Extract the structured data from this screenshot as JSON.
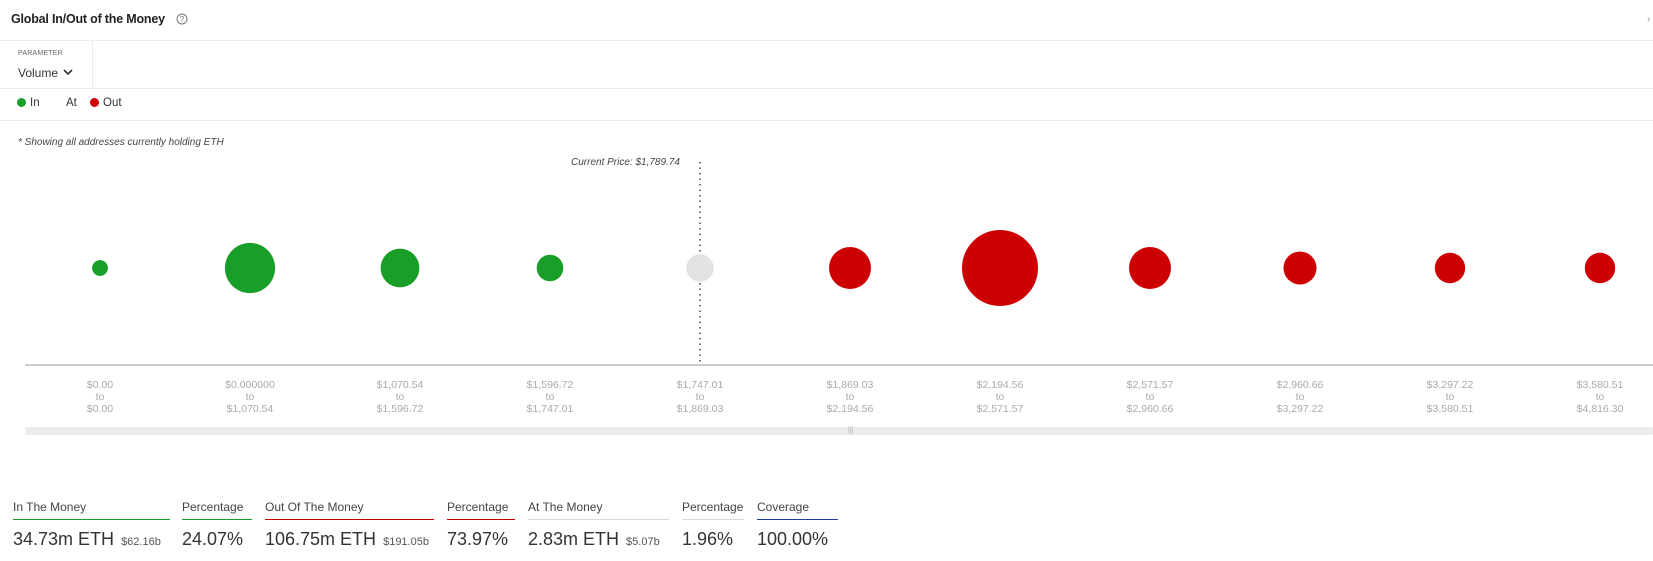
{
  "header": {
    "title": "Global In/Out of the Money"
  },
  "parameter": {
    "label": "PARAMETER",
    "value": "Volume"
  },
  "legend": [
    {
      "label": "In",
      "color": "#1a9e2a"
    },
    {
      "label": "At",
      "color": ""
    },
    {
      "label": "Out",
      "color": "#cc0000"
    }
  ],
  "note": "* Showing all addresses currently holding ETH",
  "current_price_label": "Current Price: $1,789.74",
  "colors": {
    "in": "#1a9e2a",
    "at": "#e3e3e3",
    "out": "#cc0000",
    "coverage": "#1f3f9f"
  },
  "chart_data": {
    "type": "scatter",
    "title": "",
    "xlabel": "",
    "ylabel": "",
    "categories": [
      {
        "from": "$0.00",
        "to_word": "to",
        "to": "$0.00",
        "status": "in",
        "volume_m_eth": 0.6
      },
      {
        "from": "$0.000000",
        "to_word": "to",
        "to": "$1,070.54",
        "status": "in",
        "volume_m_eth": 6.0
      },
      {
        "from": "$1,070.54",
        "to_word": "to",
        "to": "$1,596.72",
        "status": "in",
        "volume_m_eth": 3.6
      },
      {
        "from": "$1,596.72",
        "to_word": "to",
        "to": "$1,747.01",
        "status": "in",
        "volume_m_eth": 1.7
      },
      {
        "from": "$1,747.01",
        "to_word": "to",
        "to": "$1,869.03",
        "status": "at",
        "volume_m_eth": 1.8
      },
      {
        "from": "$1,869.03",
        "to_word": "to",
        "to": "$2,194.56",
        "status": "out",
        "volume_m_eth": 4.2
      },
      {
        "from": "$2,194.56",
        "to_word": "to",
        "to": "$2,571.57",
        "status": "out",
        "volume_m_eth": 13.8
      },
      {
        "from": "$2,571.57",
        "to_word": "to",
        "to": "$2,960.66",
        "status": "out",
        "volume_m_eth": 4.2
      },
      {
        "from": "$2,960.66",
        "to_word": "to",
        "to": "$3,297.22",
        "status": "out",
        "volume_m_eth": 2.6
      },
      {
        "from": "$3,297.22",
        "to_word": "to",
        "to": "$3,580.51",
        "status": "out",
        "volume_m_eth": 2.2
      },
      {
        "from": "$3,580.51",
        "to_word": "to",
        "to": "$4,816.30",
        "status": "out",
        "volume_m_eth": 2.2
      }
    ],
    "current_price": 1789.74
  },
  "stats": [
    {
      "label": "In The Money",
      "value": "34.73m ETH",
      "sub": "$62.16b",
      "color": "#1a9e2a"
    },
    {
      "label": "Percentage",
      "value": "24.07%",
      "sub": "",
      "color": "#1a9e2a"
    },
    {
      "label": "Out Of The Money",
      "value": "106.75m ETH",
      "sub": "$191.05b",
      "color": "#cc0000"
    },
    {
      "label": "Percentage",
      "value": "73.97%",
      "sub": "",
      "color": "#cc0000"
    },
    {
      "label": "At The Money",
      "value": "2.83m ETH",
      "sub": "$5.07b",
      "color": "#d8d8d8"
    },
    {
      "label": "Percentage",
      "value": "1.96%",
      "sub": "",
      "color": "#d8d8d8"
    },
    {
      "label": "Coverage",
      "value": "100.00%",
      "sub": "",
      "color": "#1f3f9f"
    }
  ]
}
